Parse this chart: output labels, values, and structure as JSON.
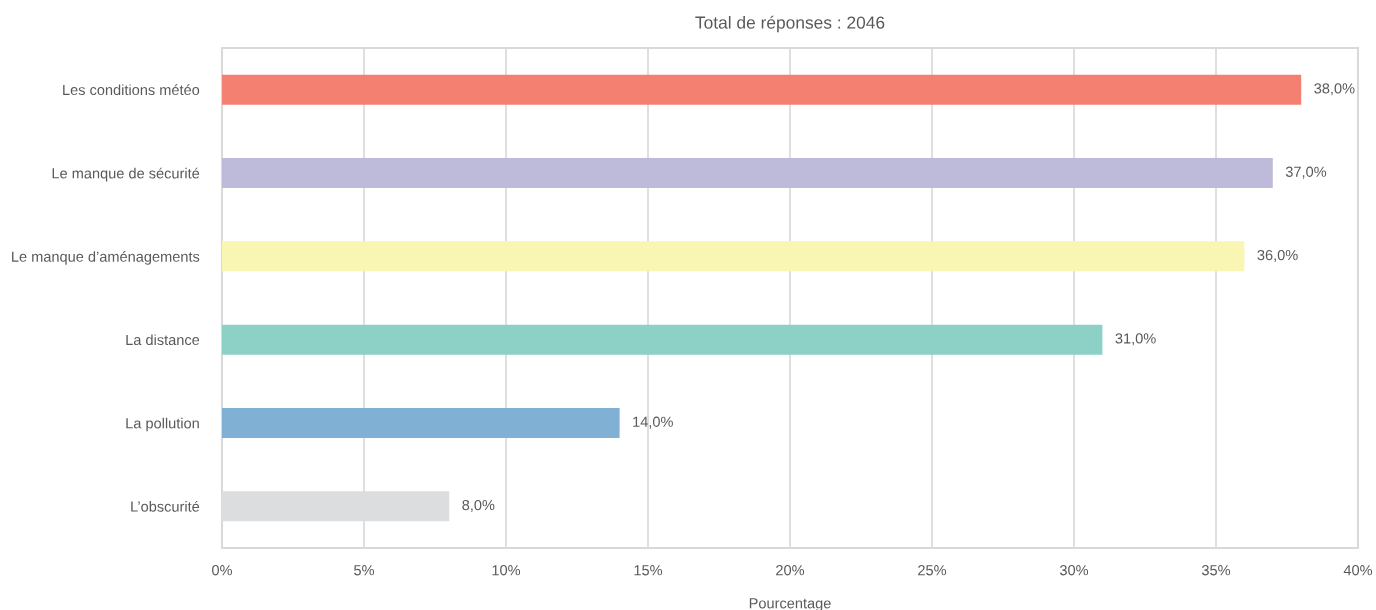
{
  "chart_data": {
    "type": "bar",
    "orientation": "horizontal",
    "title": "Total de réponses : 2046",
    "xlabel": "Pourcentage",
    "categories": [
      "Les conditions météo",
      "Le manque de sécurité",
      "Le manque d’aménagements",
      "La distance",
      "La pollution",
      "L’obscurité"
    ],
    "values": [
      38,
      37,
      36,
      31,
      14,
      8
    ],
    "colors": [
      "#f48072",
      "#bebada",
      "#f9f6b4",
      "#8dd1c6",
      "#80b0d4",
      "#dcdddf"
    ],
    "value_labels": [
      "38,0%",
      "37,0%",
      "36,0%",
      "31,0%",
      "14,0%",
      "8,0%"
    ],
    "xlim": [
      0,
      40
    ],
    "xticks": [
      {
        "value": 0,
        "label": "0%"
      },
      {
        "value": 5,
        "label": "5%"
      },
      {
        "value": 10,
        "label": "10%"
      },
      {
        "value": 15,
        "label": "15%"
      },
      {
        "value": 20,
        "label": "20%"
      },
      {
        "value": 25,
        "label": "25%"
      },
      {
        "value": 30,
        "label": "30%"
      },
      {
        "value": 35,
        "label": "35%"
      },
      {
        "value": 40,
        "label": "40%"
      }
    ],
    "grid": "x",
    "legend": false
  }
}
